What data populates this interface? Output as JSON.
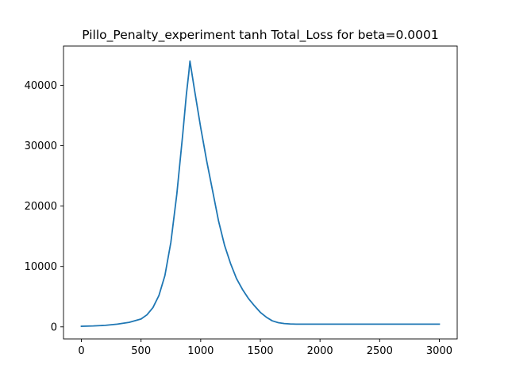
{
  "chart_data": {
    "type": "line",
    "title": "Pillo_Penalty_experiment tanh Total_Loss for beta=0.0001",
    "xlabel": "",
    "ylabel": "",
    "xlim": [
      -150,
      3150
    ],
    "ylim": [
      -2000,
      46500
    ],
    "xticks": [
      0,
      500,
      1000,
      1500,
      2000,
      2500,
      3000
    ],
    "yticks": [
      0,
      10000,
      20000,
      30000,
      40000
    ],
    "grid": false,
    "series": [
      {
        "name": "Total_Loss",
        "color": "#1f77b4",
        "x": [
          0,
          100,
          200,
          300,
          400,
          500,
          550,
          600,
          650,
          700,
          750,
          800,
          850,
          880,
          900,
          910,
          950,
          1000,
          1050,
          1100,
          1150,
          1200,
          1250,
          1300,
          1350,
          1400,
          1450,
          1500,
          1550,
          1600,
          1650,
          1700,
          1750,
          1800,
          2000,
          2500,
          3000
        ],
        "y": [
          100,
          150,
          250,
          450,
          750,
          1300,
          2000,
          3200,
          5200,
          8500,
          14000,
          22000,
          32000,
          38500,
          42000,
          44000,
          39000,
          33000,
          27500,
          22500,
          17500,
          13500,
          10500,
          8000,
          6200,
          4700,
          3500,
          2400,
          1600,
          1000,
          700,
          550,
          480,
          450,
          450,
          450,
          450
        ]
      }
    ]
  }
}
